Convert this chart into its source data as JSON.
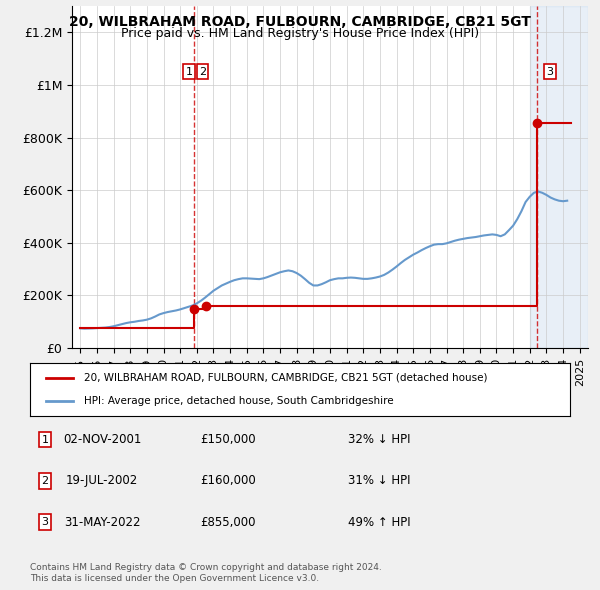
{
  "title": "20, WILBRAHAM ROAD, FULBOURN, CAMBRIDGE, CB21 5GT",
  "subtitle": "Price paid vs. HM Land Registry's House Price Index (HPI)",
  "red_label": "20, WILBRAHAM ROAD, FULBOURN, CAMBRIDGE, CB21 5GT (detached house)",
  "blue_label": "HPI: Average price, detached house, South Cambridgeshire",
  "transactions": [
    {
      "num": 1,
      "date": "02-NOV-2001",
      "price": 150000,
      "pct": "32%",
      "dir": "↓",
      "x_year": 2001.84
    },
    {
      "num": 2,
      "date": "19-JUL-2002",
      "price": 160000,
      "pct": "31%",
      "dir": "↓",
      "x_year": 2002.54
    },
    {
      "num": 3,
      "date": "31-MAY-2022",
      "price": 855000,
      "pct": "49%",
      "dir": "↑",
      "x_year": 2022.41
    }
  ],
  "hpi_data": {
    "years": [
      1995.0,
      1995.25,
      1995.5,
      1995.75,
      1996.0,
      1996.25,
      1996.5,
      1996.75,
      1997.0,
      1997.25,
      1997.5,
      1997.75,
      1998.0,
      1998.25,
      1998.5,
      1998.75,
      1999.0,
      1999.25,
      1999.5,
      1999.75,
      2000.0,
      2000.25,
      2000.5,
      2000.75,
      2001.0,
      2001.25,
      2001.5,
      2001.75,
      2002.0,
      2002.25,
      2002.5,
      2002.75,
      2003.0,
      2003.25,
      2003.5,
      2003.75,
      2004.0,
      2004.25,
      2004.5,
      2004.75,
      2005.0,
      2005.25,
      2005.5,
      2005.75,
      2006.0,
      2006.25,
      2006.5,
      2006.75,
      2007.0,
      2007.25,
      2007.5,
      2007.75,
      2008.0,
      2008.25,
      2008.5,
      2008.75,
      2009.0,
      2009.25,
      2009.5,
      2009.75,
      2010.0,
      2010.25,
      2010.5,
      2010.75,
      2011.0,
      2011.25,
      2011.5,
      2011.75,
      2012.0,
      2012.25,
      2012.5,
      2012.75,
      2013.0,
      2013.25,
      2013.5,
      2013.75,
      2014.0,
      2014.25,
      2014.5,
      2014.75,
      2015.0,
      2015.25,
      2015.5,
      2015.75,
      2016.0,
      2016.25,
      2016.5,
      2016.75,
      2017.0,
      2017.25,
      2017.5,
      2017.75,
      2018.0,
      2018.25,
      2018.5,
      2018.75,
      2019.0,
      2019.25,
      2019.5,
      2019.75,
      2020.0,
      2020.25,
      2020.5,
      2020.75,
      2021.0,
      2021.25,
      2021.5,
      2021.75,
      2022.0,
      2022.25,
      2022.5,
      2022.75,
      2023.0,
      2023.25,
      2023.5,
      2023.75,
      2024.0,
      2024.25
    ],
    "values": [
      75000,
      74000,
      74500,
      75000,
      76000,
      77000,
      78000,
      80000,
      83000,
      87000,
      91000,
      95000,
      98000,
      100000,
      103000,
      105000,
      108000,
      113000,
      120000,
      128000,
      133000,
      137000,
      140000,
      143000,
      147000,
      152000,
      157000,
      162000,
      170000,
      180000,
      192000,
      205000,
      218000,
      228000,
      238000,
      245000,
      252000,
      258000,
      262000,
      265000,
      265000,
      264000,
      263000,
      262000,
      265000,
      270000,
      276000,
      282000,
      288000,
      292000,
      295000,
      292000,
      285000,
      275000,
      262000,
      248000,
      238000,
      238000,
      243000,
      250000,
      258000,
      262000,
      265000,
      265000,
      267000,
      268000,
      267000,
      265000,
      263000,
      263000,
      265000,
      268000,
      272000,
      278000,
      287000,
      298000,
      310000,
      323000,
      335000,
      345000,
      355000,
      363000,
      372000,
      380000,
      387000,
      393000,
      395000,
      395000,
      398000,
      403000,
      408000,
      412000,
      415000,
      418000,
      420000,
      422000,
      425000,
      428000,
      430000,
      432000,
      430000,
      425000,
      432000,
      448000,
      465000,
      490000,
      520000,
      555000,
      575000,
      590000,
      595000,
      590000,
      582000,
      572000,
      565000,
      560000,
      558000,
      560000
    ]
  },
  "price_paid_data": {
    "x": [
      1995.0,
      2001.84,
      2002.54,
      2022.41,
      2024.5
    ],
    "y": [
      75000,
      150000,
      160000,
      855000,
      855000
    ]
  },
  "background_color": "#f0f0f0",
  "plot_bg_color": "#ffffff",
  "hatch_start": 2022.0,
  "xlim": [
    1994.5,
    2025.5
  ],
  "ylim": [
    0,
    1300000
  ],
  "yticks": [
    0,
    200000,
    400000,
    600000,
    800000,
    1000000,
    1200000
  ],
  "ytick_labels": [
    "£0",
    "£200K",
    "£400K",
    "£600K",
    "£800K",
    "£1M",
    "£1.2M"
  ],
  "xticks": [
    1995,
    1996,
    1997,
    1998,
    1999,
    2000,
    2001,
    2002,
    2003,
    2004,
    2005,
    2006,
    2007,
    2008,
    2009,
    2010,
    2011,
    2012,
    2013,
    2014,
    2015,
    2016,
    2017,
    2018,
    2019,
    2020,
    2021,
    2022,
    2023,
    2024,
    2025
  ],
  "vline1_x": 2001.84,
  "vline2_x": 2022.41,
  "footer": "Contains HM Land Registry data © Crown copyright and database right 2024.\nThis data is licensed under the Open Government Licence v3.0.",
  "red_color": "#cc0000",
  "blue_color": "#6699cc"
}
